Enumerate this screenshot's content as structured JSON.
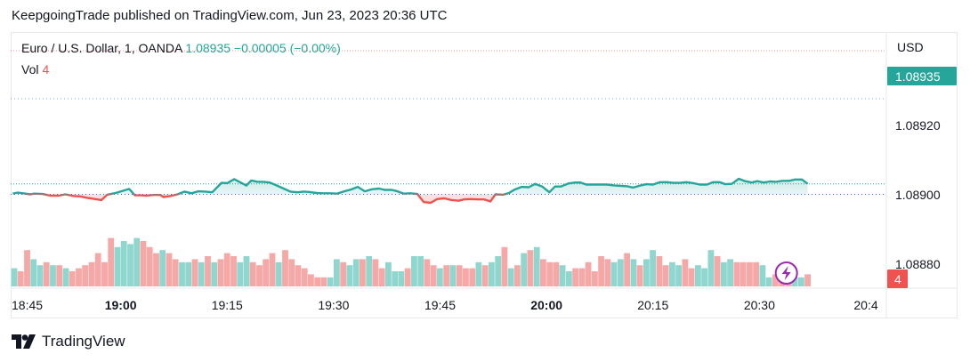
{
  "header": {
    "published": "KeepgoingTrade published on TradingView.com, Jun 23, 2023 20:36 UTC"
  },
  "legend": {
    "symbol": "Euro / U.S. Dollar, 1, OANDA",
    "last": "1.08935",
    "change": "−0.00005 (−0.00%)",
    "vol_label": "Vol",
    "vol_value": "4"
  },
  "footer": {
    "logo_text": "TradingView"
  },
  "colors": {
    "up": "#26a69a",
    "down": "#ef5350",
    "vol_up": "#8fd6cf",
    "vol_down": "#f6a8a6",
    "baseline": "#2962ff",
    "price_label_bg": "#26a69a",
    "vol_label_bg": "#ef5350",
    "lightning": "#9c27b0"
  },
  "chart_data": {
    "type": "area",
    "style": "baseline",
    "currency": "USD",
    "baseline": 1.08904,
    "y_range": [
      1.08872,
      1.08952
    ],
    "y_ticks": [
      "1.08880",
      "1.08900",
      "1.08920"
    ],
    "x_ticks": [
      {
        "label": "18:45",
        "m": 0,
        "bold": false
      },
      {
        "label": "19:00",
        "m": 15,
        "bold": true
      },
      {
        "label": "19:15",
        "m": 30,
        "bold": false
      },
      {
        "label": "19:30",
        "m": 45,
        "bold": false
      },
      {
        "label": "19:45",
        "m": 60,
        "bold": false
      },
      {
        "label": "20:00",
        "m": 75,
        "bold": true
      },
      {
        "label": "20:15",
        "m": 90,
        "bold": false
      },
      {
        "label": "20:30",
        "m": 105,
        "bold": false
      },
      {
        "label": "20:4",
        "m": 120,
        "bold": false
      }
    ],
    "x_range": [
      0,
      120
    ],
    "last_price": "1.08935",
    "last_volume": "4",
    "price_series": [
      [
        -0.2,
        1.08906
      ],
      [
        0.5,
        1.08909
      ],
      [
        2.3,
        1.08904
      ],
      [
        2.8,
        1.08906
      ],
      [
        4.0,
        1.08905
      ],
      [
        5.1,
        1.089
      ],
      [
        6.3,
        1.089
      ],
      [
        7.2,
        1.08904
      ],
      [
        8.4,
        1.08899
      ],
      [
        9.3,
        1.08898
      ],
      [
        10.2,
        1.08894
      ],
      [
        11.1,
        1.08891
      ],
      [
        12.3,
        1.08887
      ],
      [
        13.1,
        1.08903
      ],
      [
        14.3,
        1.08908
      ],
      [
        16.2,
        1.0892
      ],
      [
        17.0,
        1.08901
      ],
      [
        17.8,
        1.08901
      ],
      [
        18.6,
        1.089
      ],
      [
        19.6,
        1.08902
      ],
      [
        20.6,
        1.08902
      ],
      [
        21.0,
        1.08896
      ],
      [
        22.0,
        1.08899
      ],
      [
        23.0,
        1.08904
      ],
      [
        24.0,
        1.08912
      ],
      [
        25.0,
        1.08907
      ],
      [
        25.9,
        1.08913
      ],
      [
        26.9,
        1.08912
      ],
      [
        27.9,
        1.0891
      ],
      [
        29.2,
        1.08938
      ],
      [
        30.0,
        1.08937
      ],
      [
        31.0,
        1.08949
      ],
      [
        32.7,
        1.0893
      ],
      [
        33.4,
        1.08945
      ],
      [
        34.3,
        1.08941
      ],
      [
        35.1,
        1.08941
      ],
      [
        36.0,
        1.08939
      ],
      [
        37.0,
        1.0893
      ],
      [
        38.9,
        1.08912
      ],
      [
        39.9,
        1.0891
      ],
      [
        40.8,
        1.08912
      ],
      [
        41.5,
        1.08911
      ],
      [
        42.6,
        1.08908
      ],
      [
        43.5,
        1.08907
      ],
      [
        44.5,
        1.08907
      ],
      [
        45.5,
        1.08906
      ],
      [
        46.5,
        1.08913
      ],
      [
        47.4,
        1.08918
      ],
      [
        48.4,
        1.08926
      ],
      [
        49.4,
        1.08913
      ],
      [
        50.4,
        1.08919
      ],
      [
        51.4,
        1.08921
      ],
      [
        52.2,
        1.08917
      ],
      [
        53.2,
        1.08917
      ],
      [
        54.0,
        1.08913
      ],
      [
        54.9,
        1.08906
      ],
      [
        55.8,
        1.08907
      ],
      [
        56.8,
        1.08905
      ],
      [
        57.7,
        1.08881
      ],
      [
        58.7,
        1.08879
      ],
      [
        59.6,
        1.0889
      ],
      [
        60.6,
        1.08892
      ],
      [
        61.6,
        1.08887
      ],
      [
        62.6,
        1.08885
      ],
      [
        63.4,
        1.08889
      ],
      [
        64.3,
        1.0889
      ],
      [
        65.3,
        1.08889
      ],
      [
        66.2,
        1.08889
      ],
      [
        67.1,
        1.08883
      ],
      [
        67.8,
        1.08904
      ],
      [
        68.9,
        1.08903
      ],
      [
        69.7,
        1.08908
      ],
      [
        70.5,
        1.08918
      ],
      [
        71.5,
        1.08926
      ],
      [
        72.5,
        1.08925
      ],
      [
        73.4,
        1.08935
      ],
      [
        74.4,
        1.08927
      ],
      [
        75.4,
        1.0891
      ],
      [
        76.2,
        1.08927
      ],
      [
        77.0,
        1.08927
      ],
      [
        78.1,
        1.08936
      ],
      [
        79.0,
        1.08939
      ],
      [
        79.8,
        1.08939
      ],
      [
        80.6,
        1.08933
      ],
      [
        81.6,
        1.08933
      ],
      [
        82.5,
        1.08933
      ],
      [
        83.5,
        1.08933
      ],
      [
        84.6,
        1.0893
      ],
      [
        85.5,
        1.08929
      ],
      [
        86.4,
        1.08928
      ],
      [
        87.2,
        1.08924
      ],
      [
        88.2,
        1.0893
      ],
      [
        89.1,
        1.08934
      ],
      [
        90.0,
        1.08933
      ],
      [
        91.0,
        1.0894
      ],
      [
        92.0,
        1.0894
      ],
      [
        92.9,
        1.08938
      ],
      [
        93.8,
        1.08938
      ],
      [
        94.7,
        1.0894
      ],
      [
        95.7,
        1.08937
      ],
      [
        96.6,
        1.08933
      ],
      [
        97.6,
        1.08933
      ],
      [
        98.5,
        1.0894
      ],
      [
        99.4,
        1.0894
      ],
      [
        100.2,
        1.08934
      ],
      [
        101.1,
        1.08935
      ],
      [
        102.1,
        1.0895
      ],
      [
        103.0,
        1.08943
      ],
      [
        103.9,
        1.08939
      ],
      [
        104.7,
        1.08943
      ],
      [
        105.6,
        1.08939
      ],
      [
        106.5,
        1.08942
      ],
      [
        107.3,
        1.08941
      ],
      [
        108.3,
        1.08944
      ],
      [
        109.2,
        1.08944
      ],
      [
        110.0,
        1.08948
      ],
      [
        111.0,
        1.08948
      ],
      [
        111.8,
        1.08935
      ]
    ],
    "volume_range": [
      0,
      40
    ],
    "volumes": [
      {
        "v": 6,
        "up": true
      },
      {
        "v": 5,
        "up": false
      },
      {
        "v": 12,
        "up": false
      },
      {
        "v": 9,
        "up": true
      },
      {
        "v": 7,
        "up": true
      },
      {
        "v": 8,
        "up": false
      },
      {
        "v": 7,
        "up": true
      },
      {
        "v": 7,
        "up": false
      },
      {
        "v": 6,
        "up": true
      },
      {
        "v": 5,
        "up": false
      },
      {
        "v": 6,
        "up": false
      },
      {
        "v": 7,
        "up": false
      },
      {
        "v": 8,
        "up": false
      },
      {
        "v": 11,
        "up": false
      },
      {
        "v": 8,
        "up": false
      },
      {
        "v": 16,
        "up": false
      },
      {
        "v": 13,
        "up": true
      },
      {
        "v": 15,
        "up": true
      },
      {
        "v": 14,
        "up": true
      },
      {
        "v": 16,
        "up": true
      },
      {
        "v": 15,
        "up": false
      },
      {
        "v": 13,
        "up": false
      },
      {
        "v": 11,
        "up": false
      },
      {
        "v": 12,
        "up": true
      },
      {
        "v": 11,
        "up": false
      },
      {
        "v": 9,
        "up": false
      },
      {
        "v": 8,
        "up": true
      },
      {
        "v": 8,
        "up": true
      },
      {
        "v": 9,
        "up": false
      },
      {
        "v": 8,
        "up": true
      },
      {
        "v": 10,
        "up": false
      },
      {
        "v": 8,
        "up": true
      },
      {
        "v": 9,
        "up": false
      },
      {
        "v": 11,
        "up": false
      },
      {
        "v": 10,
        "up": false
      },
      {
        "v": 8,
        "up": true
      },
      {
        "v": 10,
        "up": true
      },
      {
        "v": 8,
        "up": false
      },
      {
        "v": 7,
        "up": false
      },
      {
        "v": 9,
        "up": false
      },
      {
        "v": 11,
        "up": false
      },
      {
        "v": 8,
        "up": true
      },
      {
        "v": 12,
        "up": false
      },
      {
        "v": 9,
        "up": false
      },
      {
        "v": 7,
        "up": false
      },
      {
        "v": 6,
        "up": false
      },
      {
        "v": 4,
        "up": false
      },
      {
        "v": 3,
        "up": false
      },
      {
        "v": 3,
        "up": false
      },
      {
        "v": 3,
        "up": true
      },
      {
        "v": 9,
        "up": true
      },
      {
        "v": 8,
        "up": false
      },
      {
        "v": 7,
        "up": true
      },
      {
        "v": 9,
        "up": true
      },
      {
        "v": 9,
        "up": false
      },
      {
        "v": 10,
        "up": true
      },
      {
        "v": 9,
        "up": false
      },
      {
        "v": 6,
        "up": false
      },
      {
        "v": 8,
        "up": true
      },
      {
        "v": 5,
        "up": true
      },
      {
        "v": 5,
        "up": true
      },
      {
        "v": 6,
        "up": false
      },
      {
        "v": 10,
        "up": true
      },
      {
        "v": 10,
        "up": true
      },
      {
        "v": 9,
        "up": false
      },
      {
        "v": 7,
        "up": false
      },
      {
        "v": 6,
        "up": true
      },
      {
        "v": 7,
        "up": false
      },
      {
        "v": 7,
        "up": true
      },
      {
        "v": 7,
        "up": false
      },
      {
        "v": 6,
        "up": false
      },
      {
        "v": 6,
        "up": false
      },
      {
        "v": 8,
        "up": true
      },
      {
        "v": 7,
        "up": false
      },
      {
        "v": 8,
        "up": true
      },
      {
        "v": 10,
        "up": true
      },
      {
        "v": 13,
        "up": false
      },
      {
        "v": 6,
        "up": true
      },
      {
        "v": 7,
        "up": false
      },
      {
        "v": 11,
        "up": true
      },
      {
        "v": 12,
        "up": false
      },
      {
        "v": 13,
        "up": true
      },
      {
        "v": 9,
        "up": false
      },
      {
        "v": 8,
        "up": false
      },
      {
        "v": 8,
        "up": false
      },
      {
        "v": 7,
        "up": true
      },
      {
        "v": 5,
        "up": true
      },
      {
        "v": 6,
        "up": false
      },
      {
        "v": 6,
        "up": false
      },
      {
        "v": 8,
        "up": false
      },
      {
        "v": 5,
        "up": false
      },
      {
        "v": 10,
        "up": false
      },
      {
        "v": 9,
        "up": false
      },
      {
        "v": 8,
        "up": true
      },
      {
        "v": 9,
        "up": true
      },
      {
        "v": 11,
        "up": false
      },
      {
        "v": 9,
        "up": true
      },
      {
        "v": 7,
        "up": false
      },
      {
        "v": 9,
        "up": true
      },
      {
        "v": 12,
        "up": true
      },
      {
        "v": 10,
        "up": false
      },
      {
        "v": 7,
        "up": false
      },
      {
        "v": 8,
        "up": true
      },
      {
        "v": 7,
        "up": true
      },
      {
        "v": 9,
        "up": false
      },
      {
        "v": 6,
        "up": false
      },
      {
        "v": 7,
        "up": true
      },
      {
        "v": 6,
        "up": true
      },
      {
        "v": 12,
        "up": true
      },
      {
        "v": 10,
        "up": false
      },
      {
        "v": 8,
        "up": true
      },
      {
        "v": 9,
        "up": true
      },
      {
        "v": 8,
        "up": false
      },
      {
        "v": 8,
        "up": false
      },
      {
        "v": 8,
        "up": false
      },
      {
        "v": 8,
        "up": false
      },
      {
        "v": 7,
        "up": true
      },
      {
        "v": 3,
        "up": true
      },
      {
        "v": 4,
        "up": false
      },
      {
        "v": 3,
        "up": false
      },
      {
        "v": 4,
        "up": false
      },
      {
        "v": 3,
        "up": true
      },
      {
        "v": 3,
        "up": true
      },
      {
        "v": 4,
        "up": false
      }
    ]
  }
}
